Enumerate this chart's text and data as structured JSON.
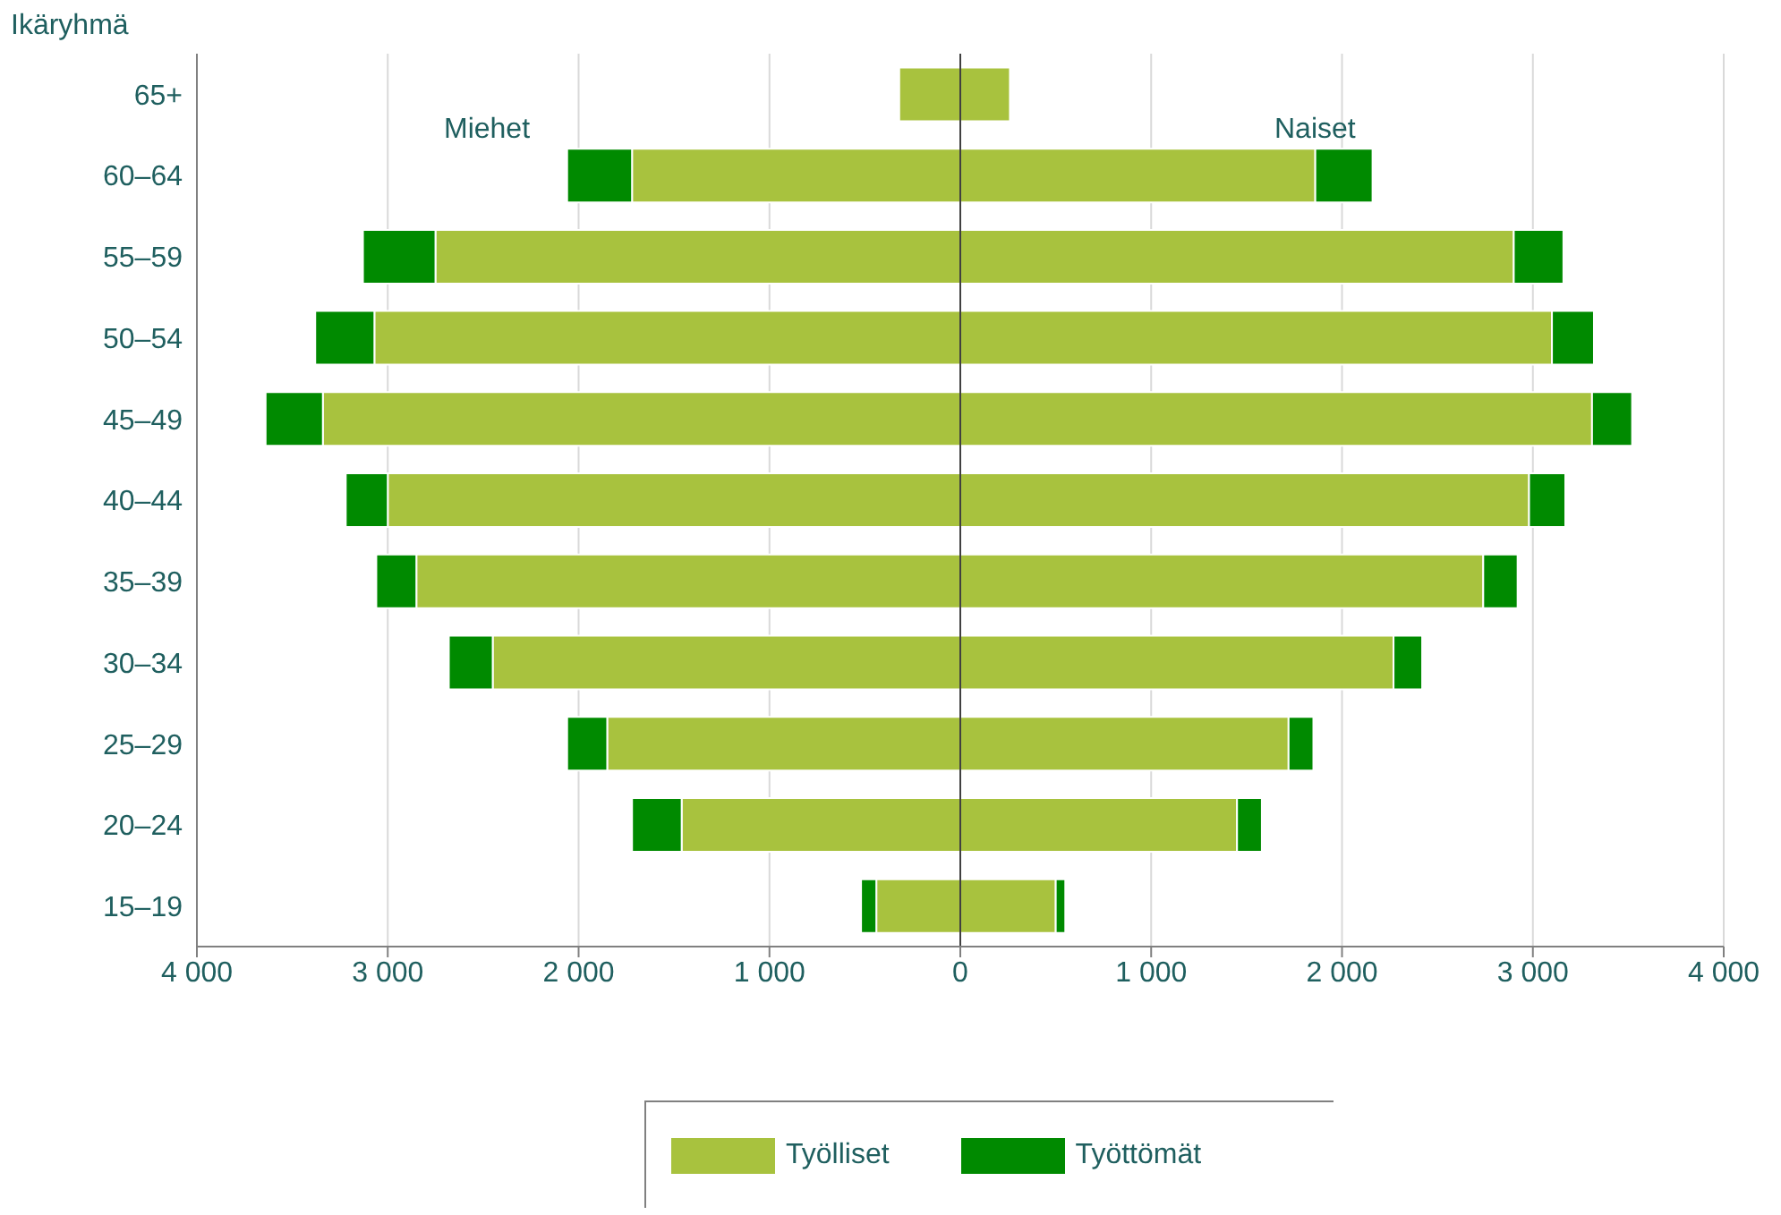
{
  "chart_data": {
    "type": "bar",
    "orientation": "horizontal",
    "stacked": true,
    "ylabel": "Ikäryhmä",
    "annotations": [
      "Miehet",
      "Naiset"
    ],
    "categories": [
      "65+",
      "60–64",
      "55–59",
      "50–54",
      "45–49",
      "40–44",
      "35–39",
      "30–34",
      "25–29",
      "20–24",
      "15–19"
    ],
    "series": [
      {
        "name": "Työlliset",
        "color": "#a8c23e",
        "values": [
          260,
          1860,
          2900,
          3100,
          3310,
          2980,
          2740,
          2270,
          1720,
          1450,
          500
        ]
      },
      {
        "name": "Työttömät",
        "color": "#008a00",
        "values": [
          null,
          300,
          260,
          220,
          210,
          190,
          180,
          150,
          130,
          130,
          50
        ]
      },
      {
        "color": "#a8c23e",
        "values": [
          -320,
          -1720,
          -2750,
          -3070,
          -3340,
          -3000,
          -2850,
          -2450,
          -1850,
          -1460,
          -440
        ]
      },
      {
        "color": "#008a00",
        "values": [
          null,
          -340,
          -380,
          -310,
          -300,
          -220,
          -210,
          -230,
          -210,
          -260,
          -80
        ]
      }
    ],
    "xlim": [
      -4000,
      4000
    ],
    "xticks": [
      {
        "value": -4000,
        "label": "4 000"
      },
      {
        "value": -3000,
        "label": "3 000"
      },
      {
        "value": -2000,
        "label": "2 000"
      },
      {
        "value": -1000,
        "label": "1 000"
      },
      0,
      {
        "value": 1000,
        "label": "1 000"
      },
      {
        "value": 2000,
        "label": "2 000"
      },
      {
        "value": 3000,
        "label": "3 000"
      },
      {
        "value": 4000,
        "label": "4 000"
      }
    ],
    "ref_lines": [
      {
        "axis": "x",
        "value": 0,
        "color": "#404040"
      }
    ],
    "grid": "x",
    "legend": "bottom"
  }
}
